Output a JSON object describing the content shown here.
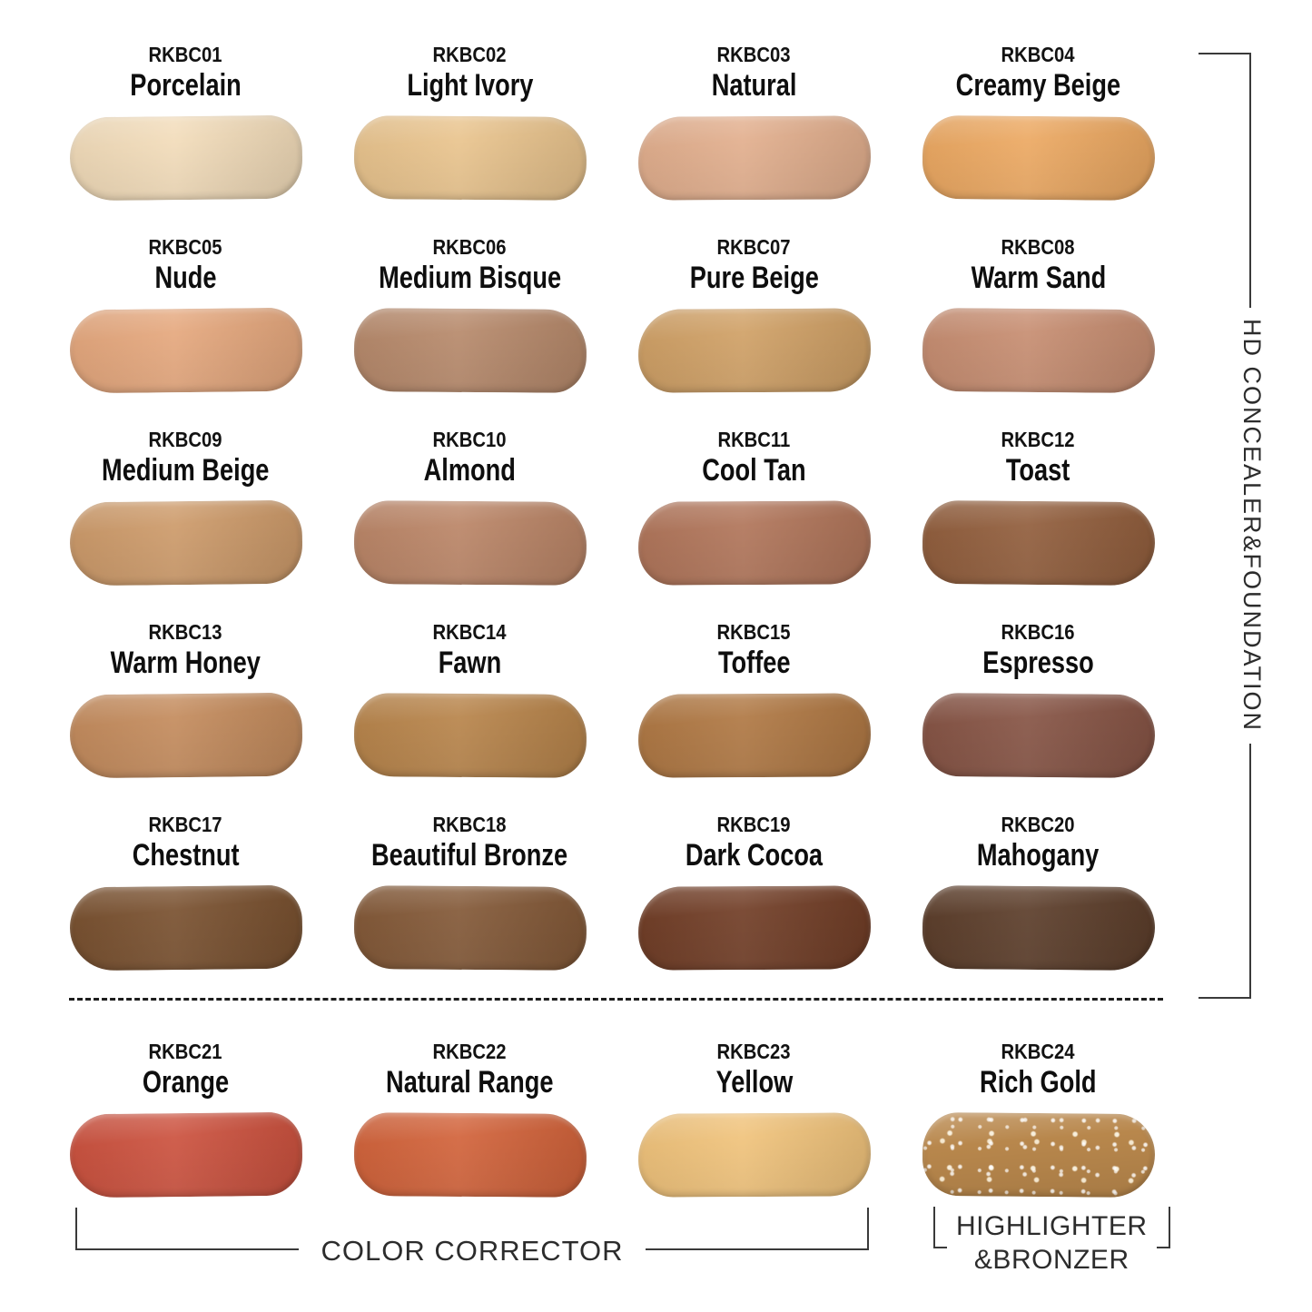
{
  "side_label": "HD CONCEALER&FOUNDATION",
  "bottom_labels": {
    "color_corrector": "COLOR CORRECTOR",
    "highlighter_line1": "HIGHLIGHTER",
    "highlighter_line2": "&BRONZER"
  },
  "swatches": [
    {
      "code": "RKBC01",
      "name": "Porcelain",
      "color": "#f2dcba"
    },
    {
      "code": "RKBC02",
      "name": "Light Ivory",
      "color": "#e9c48e"
    },
    {
      "code": "RKBC03",
      "name": "Natural",
      "color": "#e2af8e"
    },
    {
      "code": "RKBC04",
      "name": "Creamy Beige",
      "color": "#eca963"
    },
    {
      "code": "RKBC05",
      "name": "Nude",
      "color": "#e5a87e"
    },
    {
      "code": "RKBC06",
      "name": "Medium Bisque",
      "color": "#b78a6c"
    },
    {
      "code": "RKBC07",
      "name": "Pure Beige",
      "color": "#d0a167"
    },
    {
      "code": "RKBC08",
      "name": "Warm Sand",
      "color": "#c78e72"
    },
    {
      "code": "RKBC09",
      "name": "Medium Beige",
      "color": "#cd9b6b"
    },
    {
      "code": "RKBC10",
      "name": "Almond",
      "color": "#bb8668"
    },
    {
      "code": "RKBC11",
      "name": "Cool Tan",
      "color": "#b1765b"
    },
    {
      "code": "RKBC12",
      "name": "Toast",
      "color": "#925f3e"
    },
    {
      "code": "RKBC13",
      "name": "Warm Honey",
      "color": "#c48c5e"
    },
    {
      "code": "RKBC14",
      "name": "Fawn",
      "color": "#b8854c"
    },
    {
      "code": "RKBC15",
      "name": "Toffee",
      "color": "#b07945"
    },
    {
      "code": "RKBC16",
      "name": "Espresso",
      "color": "#875546"
    },
    {
      "code": "RKBC17",
      "name": "Chestnut",
      "color": "#7a5231"
    },
    {
      "code": "RKBC18",
      "name": "Beautiful Bronze",
      "color": "#845a39"
    },
    {
      "code": "RKBC19",
      "name": "Dark Cocoa",
      "color": "#723f28"
    },
    {
      "code": "RKBC20",
      "name": "Mahogany",
      "color": "#5d3f2c"
    },
    {
      "code": "RKBC21",
      "name": "Orange",
      "color": "#cc5340"
    },
    {
      "code": "RKBC22",
      "name": "Natural Range",
      "color": "#d2643c"
    },
    {
      "code": "RKBC23",
      "name": "Yellow",
      "color": "#f0c37c"
    },
    {
      "code": "RKBC24",
      "name": "Rich Gold",
      "color": "#b8874c",
      "sparkle": true
    }
  ]
}
